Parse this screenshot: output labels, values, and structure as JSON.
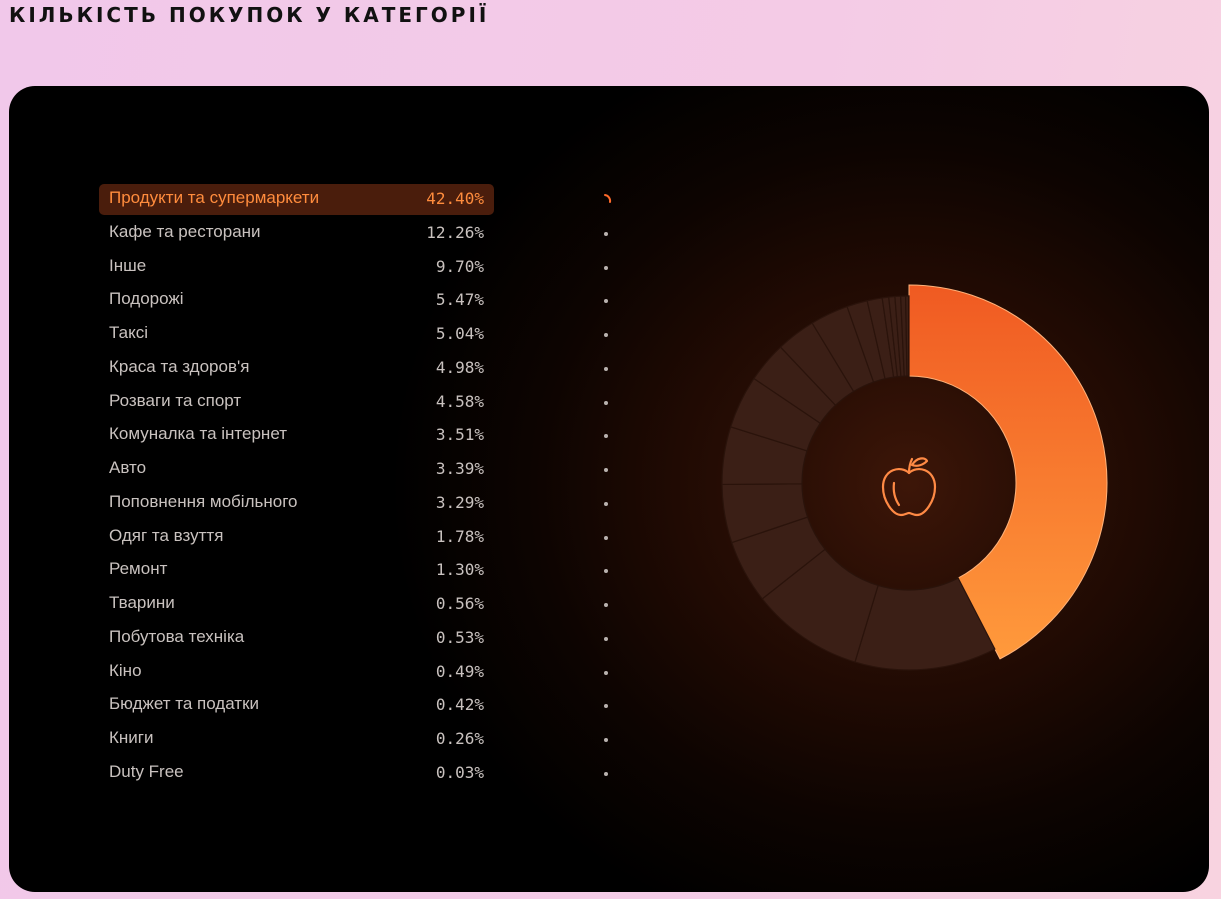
{
  "title": "КІЛЬКІСТЬ ПОКУПОК У КАТЕГОРІЇ",
  "center_icon": "apple-icon",
  "colors": {
    "accent_start": "#f05a22",
    "accent_end": "#ff9a3c",
    "muted_segment": "#3b1f16",
    "muted_line": "#2a130b",
    "label": "#c9c2bf",
    "selected_label": "#ff8c3d"
  },
  "chart_data": {
    "type": "pie",
    "variant": "donut",
    "selected_index": 0,
    "categories": [
      "Продукти та супермаркети",
      "Кафе та ресторани",
      "Інше",
      "Подорожі",
      "Таксі",
      "Краса та здоров'я",
      "Розваги та спорт",
      "Комуналка та інтернет",
      "Авто",
      "Поповнення мобільного",
      "Одяг та взуття",
      "Ремонт",
      "Тварини",
      "Побутова техніка",
      "Кіно",
      "Бюджет та податки",
      "Книги",
      "Duty Free"
    ],
    "values": [
      42.4,
      12.26,
      9.7,
      5.47,
      5.04,
      4.98,
      4.58,
      3.51,
      3.39,
      3.29,
      1.78,
      1.3,
      0.56,
      0.53,
      0.49,
      0.42,
      0.26,
      0.03
    ],
    "value_labels": [
      "42.40%",
      "12.26%",
      "9.70%",
      "5.47%",
      "5.04%",
      "4.98%",
      "4.58%",
      "3.51%",
      "3.39%",
      "3.29%",
      "1.78%",
      "1.30%",
      "0.56%",
      "0.53%",
      "0.49%",
      "0.42%",
      "0.26%",
      "0.03%"
    ]
  }
}
